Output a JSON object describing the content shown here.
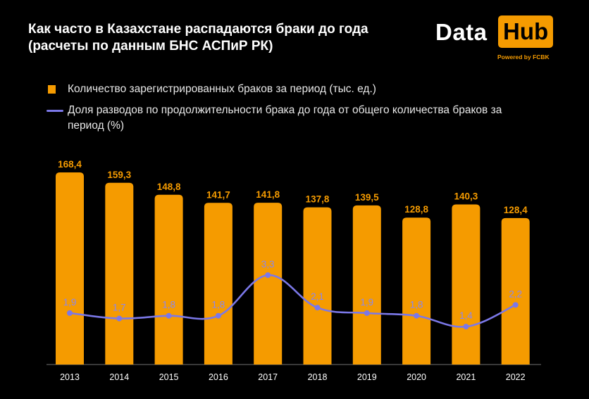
{
  "title": {
    "line1": "Как часто в Казахстане распадаются браки до года",
    "line2": "(расчеты по данным БНС АСПиР РК)"
  },
  "logo": {
    "data": "Data",
    "hub": "Hub",
    "powered": "Powered by FCBK"
  },
  "legend": {
    "bars": "Количество зарегистрированных браков за период (тыс. ед.)",
    "line": "Доля разводов по продолжительности брака до года от общего количества браков за период (%)"
  },
  "colors": {
    "bar": "#f59b00",
    "line": "#7b78e8",
    "background": "#000000",
    "text": "#ffffff"
  },
  "chart_data": {
    "type": "bar",
    "categories": [
      "2013",
      "2014",
      "2015",
      "2016",
      "2017",
      "2018",
      "2019",
      "2020",
      "2021",
      "2022"
    ],
    "series": [
      {
        "name": "Количество зарегистрированных браков за период (тыс. ед.)",
        "type": "bar",
        "values": [
          168.4,
          159.3,
          148.8,
          141.7,
          141.8,
          137.8,
          139.5,
          128.8,
          140.3,
          128.4
        ],
        "labels": [
          "168,4",
          "159,3",
          "148,8",
          "141,7",
          "141,8",
          "137,8",
          "139,5",
          "128,8",
          "140,3",
          "128,4"
        ]
      },
      {
        "name": "Доля разводов по продолжительности брака до года от общего количества браков за период (%)",
        "type": "line",
        "values": [
          1.9,
          1.7,
          1.8,
          1.8,
          3.3,
          2.1,
          1.9,
          1.8,
          1.4,
          2.2
        ],
        "labels": [
          "1,9",
          "1,7",
          "1,8",
          "1,8",
          "3,3",
          "2,1",
          "1,9",
          "1,8",
          "1,4",
          "2,2"
        ]
      }
    ],
    "bar_axis_range": [
      0,
      175
    ],
    "line_axis_range": [
      0,
      9
    ],
    "grid": false,
    "legend_position": "top-left"
  }
}
